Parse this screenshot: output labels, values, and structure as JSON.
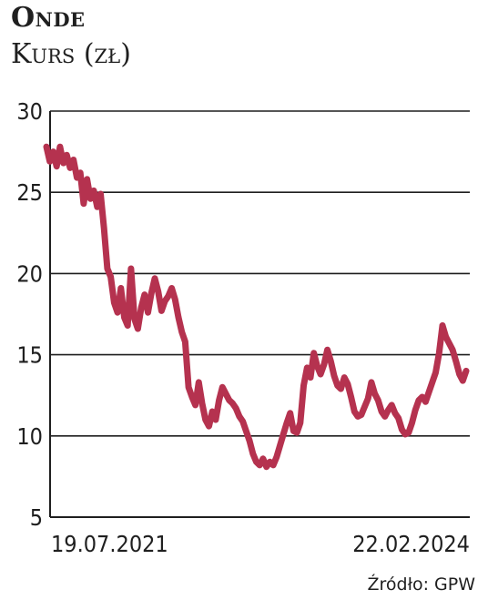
{
  "header": {
    "title": "Onde",
    "subtitle": "Kurs (zł)"
  },
  "source": "Źródło: GPW",
  "colors": {
    "line": "#b5324f",
    "grid": "#1f1f1f",
    "text": "#1f1f1f"
  },
  "chart_data": {
    "type": "line",
    "title": "Onde",
    "ylabel": "Kurs (zł)",
    "ylim": [
      5,
      30
    ],
    "yticks": [
      5,
      10,
      15,
      20,
      25,
      30
    ],
    "grid": "horizontal",
    "x_start_label": "19.07.2021",
    "x_end_label": "22.02.2024",
    "series": [
      {
        "values": [
          27.8,
          26.9,
          27.5,
          26.6,
          27.8,
          26.8,
          27.3,
          26.5,
          27.0,
          25.9,
          26.2,
          24.3,
          25.8,
          24.6,
          25.1,
          24.1,
          24.9,
          22.8,
          20.3,
          19.8,
          18.2,
          17.6,
          19.1,
          17.3,
          16.8,
          20.3,
          17.2,
          16.6,
          17.9,
          18.7,
          17.6,
          18.8,
          19.7,
          18.9,
          17.7,
          18.3,
          18.6,
          19.1,
          18.4,
          17.3,
          16.4,
          15.8,
          13.0,
          12.4,
          11.9,
          13.3,
          12.0,
          11.0,
          10.6,
          11.5,
          11.0,
          12.2,
          13.0,
          12.6,
          12.2,
          12.0,
          11.7,
          11.2,
          10.9,
          10.3,
          9.7,
          8.9,
          8.4,
          8.2,
          8.6,
          8.1,
          8.4,
          8.2,
          8.7,
          9.4,
          10.1,
          10.8,
          11.4,
          10.3,
          10.2,
          10.8,
          13.1,
          14.2,
          13.6,
          15.1,
          14.3,
          13.8,
          14.4,
          15.3,
          14.6,
          13.7,
          13.1,
          12.9,
          13.6,
          13.2,
          12.4,
          11.5,
          11.2,
          11.3,
          11.8,
          12.3,
          13.3,
          12.6,
          12.2,
          11.5,
          11.2,
          11.6,
          11.9,
          11.4,
          11.1,
          10.4,
          10.1,
          10.2,
          10.8,
          11.6,
          12.2,
          12.4,
          12.1,
          12.7,
          13.3,
          13.9,
          15.1,
          16.8,
          16.1,
          15.7,
          15.3,
          14.6,
          13.8,
          13.4,
          14.0
        ]
      }
    ]
  }
}
